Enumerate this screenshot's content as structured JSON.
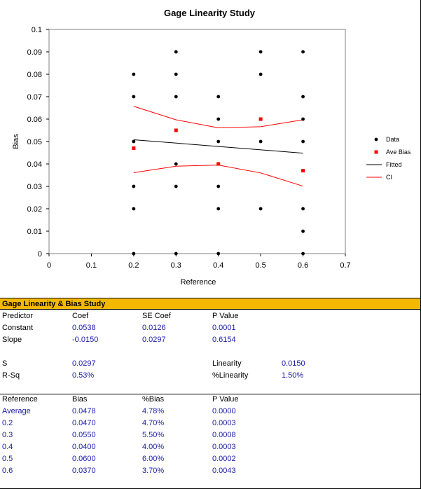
{
  "chart_data": {
    "type": "scatter",
    "title": "Gage Linearity  Study",
    "xlabel": "Reference",
    "ylabel": "Bias",
    "xlim": [
      0,
      0.7
    ],
    "ylim": [
      0,
      0.1
    ],
    "x_ticks": [
      "0",
      "0.1",
      "0.2",
      "0.3",
      "0.4",
      "0.5",
      "0.6",
      "0.7"
    ],
    "y_ticks": [
      "0",
      "0.01",
      "0.02",
      "0.03",
      "0.04",
      "0.05",
      "0.06",
      "0.07",
      "0.08",
      "0.09",
      "0.1"
    ],
    "grid": false,
    "legend_position": "right",
    "colors": {
      "data": "#000000",
      "ave_bias": "#ff0000",
      "fitted": "#000000",
      "ci": "#ff0000"
    },
    "series": [
      {
        "name": "Data",
        "points": [
          [
            0.2,
            0.08
          ],
          [
            0.2,
            0.07
          ],
          [
            0.2,
            0.05
          ],
          [
            0.2,
            0.03
          ],
          [
            0.2,
            0.02
          ],
          [
            0.2,
            0.0
          ],
          [
            0.3,
            0.09
          ],
          [
            0.3,
            0.08
          ],
          [
            0.3,
            0.07
          ],
          [
            0.3,
            0.04
          ],
          [
            0.3,
            0.03
          ],
          [
            0.3,
            0.0
          ],
          [
            0.4,
            0.07
          ],
          [
            0.4,
            0.06
          ],
          [
            0.4,
            0.05
          ],
          [
            0.4,
            0.03
          ],
          [
            0.4,
            0.02
          ],
          [
            0.4,
            0.0
          ],
          [
            0.5,
            0.09
          ],
          [
            0.5,
            0.08
          ],
          [
            0.5,
            0.05
          ],
          [
            0.5,
            0.02
          ],
          [
            0.6,
            0.09
          ],
          [
            0.6,
            0.07
          ],
          [
            0.6,
            0.06
          ],
          [
            0.6,
            0.05
          ],
          [
            0.6,
            0.02
          ],
          [
            0.6,
            0.01
          ],
          [
            0.6,
            0.0
          ]
        ]
      },
      {
        "name": "Ave Bias",
        "points": [
          [
            0.2,
            0.047
          ],
          [
            0.3,
            0.055
          ],
          [
            0.4,
            0.04
          ],
          [
            0.5,
            0.06
          ],
          [
            0.6,
            0.037
          ]
        ]
      },
      {
        "name": "Fitted",
        "points": [
          [
            0.2,
            0.0508
          ],
          [
            0.6,
            0.0448
          ]
        ]
      },
      {
        "name": "CI",
        "upper": [
          [
            0.2,
            0.0657
          ],
          [
            0.3,
            0.0597
          ],
          [
            0.4,
            0.0561
          ],
          [
            0.5,
            0.0566
          ],
          [
            0.6,
            0.0597
          ]
        ],
        "lower": [
          [
            0.2,
            0.0361
          ],
          [
            0.3,
            0.039
          ],
          [
            0.4,
            0.0395
          ],
          [
            0.5,
            0.036
          ],
          [
            0.6,
            0.0301
          ]
        ]
      }
    ]
  },
  "results": {
    "header": "Gage Linearity & Bias Study",
    "coef_headers": [
      "Predictor",
      "Coef",
      "SE Coef",
      "P Value"
    ],
    "coef_rows": [
      [
        "Constant",
        "0.0538",
        "0.0126",
        "0.0001"
      ],
      [
        "Slope",
        "-0.0150",
        "0.0297",
        "0.6154"
      ]
    ],
    "s_label": "S",
    "s_value": "0.0297",
    "rsq_label": "R-Sq",
    "rsq_value": "0.53%",
    "linearity_label": "Linearity",
    "linearity_value": "0.0150",
    "pct_linearity_label": "%Linearity",
    "pct_linearity_value": "1.50%",
    "bias_headers": [
      "Reference",
      "Bias",
      "%Bias",
      "P Value"
    ],
    "bias_rows": [
      [
        "Average",
        "0.0478",
        "4.78%",
        "0.0000"
      ],
      [
        "0.2",
        "0.0470",
        "4.70%",
        "0.0003"
      ],
      [
        "0.3",
        "0.0550",
        "5.50%",
        "0.0008"
      ],
      [
        "0.4",
        "0.0400",
        "4.00%",
        "0.0003"
      ],
      [
        "0.5",
        "0.0600",
        "6.00%",
        "0.0002"
      ],
      [
        "0.6",
        "0.0370",
        "3.70%",
        "0.0043"
      ]
    ]
  }
}
